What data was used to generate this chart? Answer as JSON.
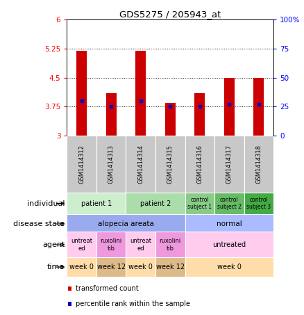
{
  "title": "GDS5275 / 205943_at",
  "samples": [
    "GSM1414312",
    "GSM1414313",
    "GSM1414314",
    "GSM1414315",
    "GSM1414316",
    "GSM1414317",
    "GSM1414318"
  ],
  "bar_values": [
    5.2,
    4.1,
    5.2,
    3.85,
    4.1,
    4.5,
    4.5
  ],
  "bar_base": 3.0,
  "percentile_values": [
    3.9,
    3.75,
    3.9,
    3.75,
    3.75,
    3.8,
    3.8
  ],
  "ylim": [
    3.0,
    6.0
  ],
  "y_ticks": [
    3,
    3.75,
    4.5,
    5.25,
    6
  ],
  "y_tick_labels": [
    "3",
    "3.75",
    "4.5",
    "5.25",
    "6"
  ],
  "y2_ticks": [
    0,
    25,
    50,
    75,
    100
  ],
  "y2_tick_labels": [
    "0",
    "25",
    "50",
    "75",
    "100%"
  ],
  "dotted_lines": [
    3.75,
    4.5,
    5.25
  ],
  "bar_color": "#cc0000",
  "percentile_color": "#0000cc",
  "bar_width": 0.35,
  "individual_row": {
    "label": "individual",
    "cells": [
      {
        "text": "patient 1",
        "span": [
          0,
          1
        ],
        "color": "#cceecc"
      },
      {
        "text": "patient 2",
        "span": [
          2,
          3
        ],
        "color": "#aaddaa"
      },
      {
        "text": "control\nsubject 1",
        "span": [
          4,
          4
        ],
        "color": "#88cc88"
      },
      {
        "text": "control\nsubject 2",
        "span": [
          5,
          5
        ],
        "color": "#66bb66"
      },
      {
        "text": "control\nsubject 3",
        "span": [
          6,
          6
        ],
        "color": "#44aa44"
      }
    ]
  },
  "disease_row": {
    "label": "disease state",
    "cells": [
      {
        "text": "alopecia areata",
        "span": [
          0,
          3
        ],
        "color": "#99aaee"
      },
      {
        "text": "normal",
        "span": [
          4,
          6
        ],
        "color": "#aabbff"
      }
    ]
  },
  "agent_row": {
    "label": "agent",
    "cells": [
      {
        "text": "untreat\ned",
        "span": [
          0,
          0
        ],
        "color": "#ffccee"
      },
      {
        "text": "ruxolini\ntib",
        "span": [
          1,
          1
        ],
        "color": "#ee99dd"
      },
      {
        "text": "untreat\ned",
        "span": [
          2,
          2
        ],
        "color": "#ffccee"
      },
      {
        "text": "ruxolini\ntib",
        "span": [
          3,
          3
        ],
        "color": "#ee99dd"
      },
      {
        "text": "untreated",
        "span": [
          4,
          6
        ],
        "color": "#ffccee"
      }
    ]
  },
  "time_row": {
    "label": "time",
    "cells": [
      {
        "text": "week 0",
        "span": [
          0,
          0
        ],
        "color": "#ffddaa"
      },
      {
        "text": "week 12",
        "span": [
          1,
          1
        ],
        "color": "#ddbb88"
      },
      {
        "text": "week 0",
        "span": [
          2,
          2
        ],
        "color": "#ffddaa"
      },
      {
        "text": "week 12",
        "span": [
          3,
          3
        ],
        "color": "#ddbb88"
      },
      {
        "text": "week 0",
        "span": [
          4,
          6
        ],
        "color": "#ffddaa"
      }
    ]
  },
  "legend_items": [
    {
      "color": "#cc0000",
      "label": "transformed count"
    },
    {
      "color": "#0000cc",
      "label": "percentile rank within the sample"
    }
  ],
  "gsm_bg_color": "#c8c8c8",
  "row_label_fontsize": 8,
  "cell_fontsize": 7,
  "gsm_fontsize": 6
}
